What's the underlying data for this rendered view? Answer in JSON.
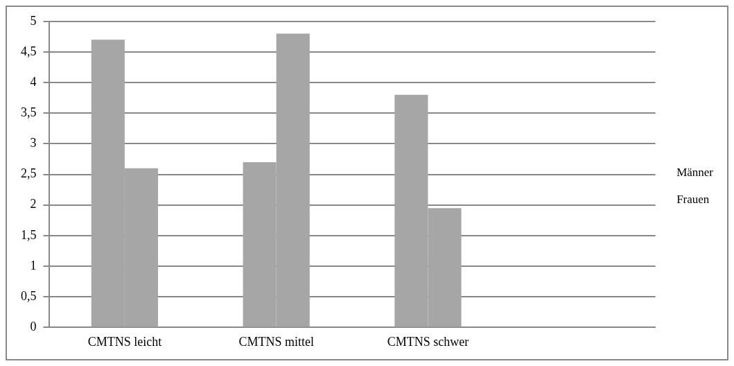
{
  "chart_data": {
    "type": "bar",
    "categories": [
      "CMTNS leicht",
      "CMTNS mittel",
      "CMTNS schwer",
      null
    ],
    "series": [
      {
        "name": "Männer",
        "color": "#a6a6a6",
        "values": [
          4.7,
          2.7,
          3.8,
          null
        ]
      },
      {
        "name": "Frauen",
        "color": "#a6a6a6",
        "values": [
          2.6,
          4.8,
          1.95,
          null
        ]
      }
    ],
    "ylim": [
      0,
      5
    ],
    "yticks": [
      0,
      {
        "value": 0.5,
        "label": "0,5"
      },
      1,
      {
        "value": 1.5,
        "label": "1,5"
      },
      2,
      {
        "value": 2.5,
        "label": "2,5"
      },
      3,
      {
        "value": 3.5,
        "label": "3,5"
      },
      4,
      {
        "value": 4.5,
        "label": "4,5"
      },
      5
    ],
    "grid": "y",
    "legend": "right"
  }
}
